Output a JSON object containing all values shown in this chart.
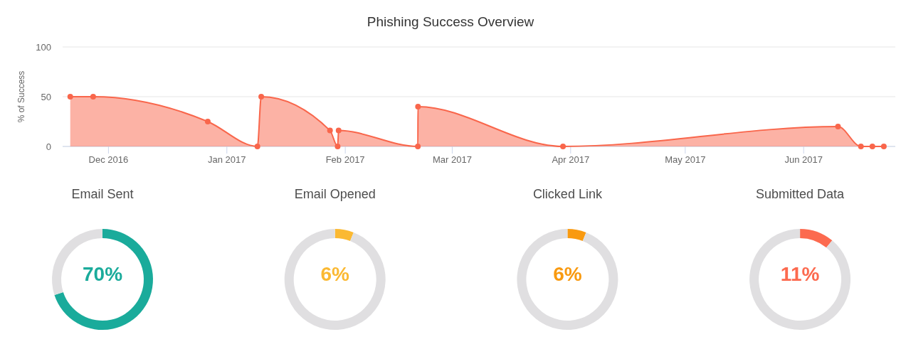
{
  "chart_data": [
    {
      "type": "area",
      "title": "Phishing Success Overview",
      "ylabel": "% of Success",
      "x": [
        "2016-11-21",
        "2016-11-27",
        "2016-12-27",
        "2017-01-09",
        "2017-01-10",
        "2017-01-28",
        "2017-01-30",
        "2017-01-30T06:00",
        "2017-02-20",
        "2017-02-20T01:00",
        "2017-03-30",
        "2017-06-10",
        "2017-06-16",
        "2017-06-19",
        "2017-06-22"
      ],
      "values": [
        50,
        50,
        25,
        0,
        50,
        16,
        0,
        16,
        0,
        40,
        0,
        20,
        0,
        0,
        0
      ],
      "color": "#f9664b",
      "marker": "circle",
      "xlim": [
        "2016-11-19",
        "2017-06-25"
      ],
      "ylim": [
        0,
        100
      ],
      "xticks": [
        {
          "value": "2016-12-01",
          "label": "Dec 2016"
        },
        {
          "value": "2017-01-01",
          "label": "Jan 2017"
        },
        {
          "value": "2017-02-01",
          "label": "Feb 2017"
        },
        {
          "value": "2017-03-01",
          "label": "Mar 2017"
        },
        {
          "value": "2017-04-01",
          "label": "Apr 2017"
        },
        {
          "value": "2017-05-01",
          "label": "May 2017"
        },
        {
          "value": "2017-06-01",
          "label": "Jun 2017"
        }
      ],
      "yticks": [
        0,
        50,
        100
      ],
      "grid": "y"
    },
    {
      "type": "donut",
      "title": "Email Sent",
      "categories": [
        null,
        null
      ],
      "values": [
        70,
        30
      ],
      "colors": [
        "#1aab9b",
        "#e0dfe1"
      ],
      "value_labels": [
        "70%",
        null
      ]
    },
    {
      "type": "donut",
      "title": "Email Opened",
      "categories": [
        null,
        null
      ],
      "values": [
        6,
        94
      ],
      "colors": [
        "#fbb932",
        "#e0dfe1"
      ],
      "value_labels": [
        "6%",
        null
      ]
    },
    {
      "type": "donut",
      "title": "Clicked Link",
      "categories": [
        null,
        null
      ],
      "values": [
        6,
        94
      ],
      "colors": [
        "#f99a10",
        "#e0dfe1"
      ],
      "value_labels": [
        "6%",
        null
      ]
    },
    {
      "type": "donut",
      "title": "Submitted Data",
      "categories": [
        null,
        null
      ],
      "values": [
        11,
        89
      ],
      "colors": [
        "#fc6a4f",
        "#e0dfe1"
      ],
      "value_labels": [
        "11%",
        null
      ]
    }
  ]
}
